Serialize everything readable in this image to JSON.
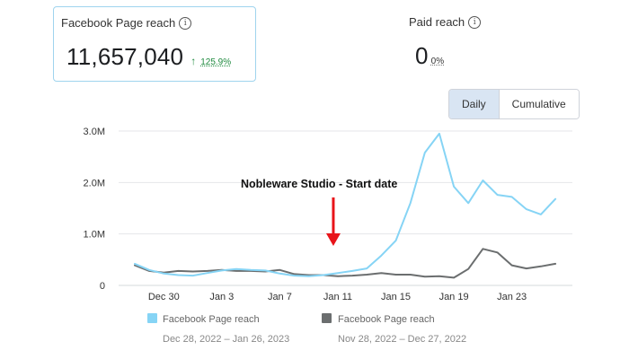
{
  "metrics": {
    "facebook_reach": {
      "title": "Facebook Page reach",
      "value": "11,657,040",
      "change": "125.9%",
      "change_direction": "up"
    },
    "paid_reach": {
      "title": "Paid reach",
      "value": "0",
      "change": "0%"
    }
  },
  "toggle": {
    "daily": "Daily",
    "cumulative": "Cumulative",
    "selected": "daily"
  },
  "chart_data": {
    "type": "line",
    "title": "",
    "xlabel": "",
    "ylabel": "",
    "ylim": [
      0,
      3000000
    ],
    "y_ticks": [
      {
        "value": 0,
        "label": "0"
      },
      {
        "value": 1000000,
        "label": "1.0M"
      },
      {
        "value": 2000000,
        "label": "2.0M"
      },
      {
        "value": 3000000,
        "label": "3.0M"
      }
    ],
    "x_ticks": [
      {
        "index": 2,
        "label": "Dec 30"
      },
      {
        "index": 6,
        "label": "Jan 3"
      },
      {
        "index": 10,
        "label": "Jan 7"
      },
      {
        "index": 14,
        "label": "Jan 11"
      },
      {
        "index": 18,
        "label": "Jan 15"
      },
      {
        "index": 22,
        "label": "Jan 19"
      },
      {
        "index": 26,
        "label": "Jan 23"
      }
    ],
    "grid": true,
    "legend_position": "bottom",
    "series": [
      {
        "name": "Facebook Page reach",
        "range": "Dec 28, 2022 – Jan 26, 2023",
        "color": "#86d4f5",
        "values": [
          420000,
          300000,
          230000,
          200000,
          190000,
          240000,
          290000,
          320000,
          300000,
          290000,
          230000,
          190000,
          180000,
          200000,
          240000,
          280000,
          330000,
          580000,
          870000,
          1600000,
          2580000,
          2950000,
          1920000,
          1600000,
          2040000,
          1760000,
          1720000,
          1480000,
          1380000,
          1680000
        ]
      },
      {
        "name": "Facebook Page reach",
        "range": "Nov 28, 2022 – Dec 27, 2022",
        "color": "#6b6e6f",
        "values": [
          390000,
          280000,
          250000,
          280000,
          270000,
          280000,
          300000,
          280000,
          280000,
          270000,
          300000,
          220000,
          200000,
          200000,
          180000,
          190000,
          210000,
          240000,
          210000,
          210000,
          170000,
          180000,
          150000,
          320000,
          710000,
          640000,
          390000,
          330000,
          370000,
          420000
        ]
      }
    ],
    "annotations": [
      {
        "text": "Nobleware Studio - Start date",
        "index": 14,
        "color": "#e8141a"
      }
    ]
  }
}
